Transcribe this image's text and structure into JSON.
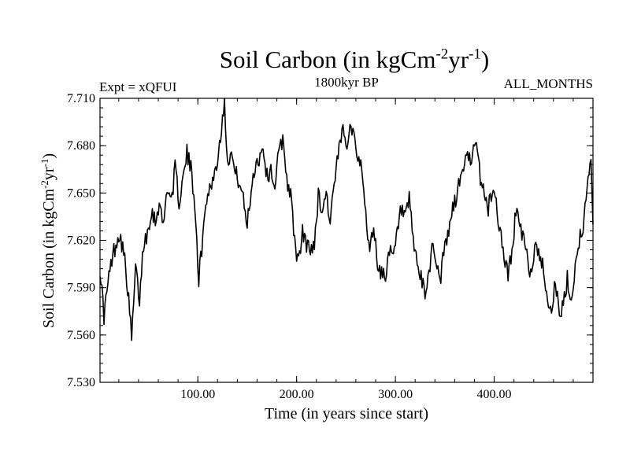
{
  "chart_data": {
    "type": "line",
    "title": "Soil Carbon (in kgCm",
    "title_unit_sup1": "-2",
    "title_unit_mid": "yr",
    "title_unit_sup2": "-1",
    "title_close": ")",
    "top_left_label": "Expt = xQFUI",
    "top_center_label": "1800kyr BP",
    "top_right_label": "ALL_MONTHS",
    "xlabel": "Time (in years since start)",
    "ylabel": "Soil Carbon (in kgCm",
    "ylabel_sup1": "-2",
    "ylabel_mid": "yr",
    "ylabel_sup2": "-1",
    "ylabel_close": ")",
    "xlim": [
      1,
      500
    ],
    "ylim": [
      7.53,
      7.71
    ],
    "x_ticks": [
      100,
      200,
      300,
      400
    ],
    "x_tick_labels": [
      "100.00",
      "200.00",
      "300.00",
      "400.00"
    ],
    "y_ticks": [
      7.53,
      7.56,
      7.59,
      7.62,
      7.65,
      7.68,
      7.71
    ],
    "y_tick_labels": [
      "7.530",
      "7.560",
      "7.590",
      "7.620",
      "7.650",
      "7.680",
      "7.710"
    ],
    "line_color": "#000000",
    "series": [
      {
        "name": "Soil Carbon",
        "x": [
          1,
          5,
          9,
          13,
          17,
          21,
          25,
          29,
          33,
          37,
          41,
          45,
          49,
          53,
          57,
          61,
          65,
          69,
          73,
          77,
          81,
          85,
          89,
          93,
          97,
          101,
          105,
          109,
          113,
          117,
          121,
          125,
          127,
          130,
          134,
          138,
          142,
          146,
          150,
          154,
          158,
          162,
          166,
          170,
          174,
          178,
          182,
          186,
          190,
          194,
          198,
          202,
          206,
          210,
          214,
          218,
          222,
          226,
          230,
          234,
          238,
          242,
          246,
          250,
          254,
          258,
          262,
          266,
          270,
          274,
          278,
          282,
          286,
          290,
          294,
          298,
          302,
          306,
          310,
          314,
          318,
          322,
          326,
          330,
          334,
          338,
          342,
          346,
          350,
          354,
          358,
          362,
          366,
          370,
          374,
          378,
          382,
          386,
          390,
          394,
          398,
          402,
          406,
          410,
          414,
          418,
          422,
          426,
          430,
          434,
          438,
          442,
          446,
          450,
          454,
          458,
          462,
          466,
          470,
          474,
          478,
          482,
          486,
          490,
          494,
          498,
          500
        ],
        "y": [
          7.603,
          7.572,
          7.592,
          7.608,
          7.618,
          7.625,
          7.612,
          7.59,
          7.557,
          7.602,
          7.582,
          7.618,
          7.625,
          7.64,
          7.632,
          7.645,
          7.628,
          7.655,
          7.645,
          7.665,
          7.645,
          7.658,
          7.675,
          7.665,
          7.645,
          7.595,
          7.622,
          7.648,
          7.655,
          7.662,
          7.675,
          7.7,
          7.708,
          7.672,
          7.675,
          7.662,
          7.658,
          7.645,
          7.63,
          7.652,
          7.668,
          7.672,
          7.68,
          7.66,
          7.665,
          7.655,
          7.675,
          7.685,
          7.66,
          7.648,
          7.62,
          7.605,
          7.625,
          7.618,
          7.612,
          7.62,
          7.648,
          7.64,
          7.65,
          7.632,
          7.655,
          7.672,
          7.69,
          7.68,
          7.695,
          7.688,
          7.675,
          7.662,
          7.638,
          7.612,
          7.63,
          7.605,
          7.598,
          7.6,
          7.612,
          7.608,
          7.625,
          7.64,
          7.632,
          7.645,
          7.62,
          7.605,
          7.595,
          7.585,
          7.6,
          7.62,
          7.602,
          7.598,
          7.615,
          7.625,
          7.64,
          7.648,
          7.66,
          7.67,
          7.672,
          7.675,
          7.678,
          7.66,
          7.65,
          7.64,
          7.652,
          7.645,
          7.625,
          7.61,
          7.598,
          7.612,
          7.64,
          7.628,
          7.62,
          7.605,
          7.6,
          7.618,
          7.612,
          7.6,
          7.585,
          7.575,
          7.595,
          7.57,
          7.578,
          7.595,
          7.58,
          7.605,
          7.62,
          7.63,
          7.652,
          7.668,
          7.63
        ]
      }
    ]
  }
}
